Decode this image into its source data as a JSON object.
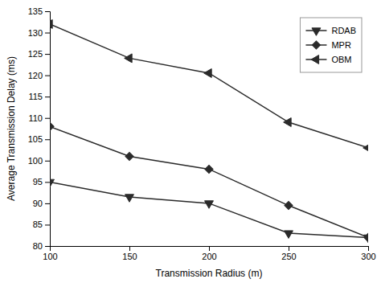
{
  "chart_data": {
    "type": "line",
    "xlabel": "Transmission Radius (m)",
    "ylabel": "Average Transmission Delay (ms)",
    "x": [
      100,
      150,
      200,
      250,
      300
    ],
    "series": [
      {
        "name": "RDAB",
        "color": "#2a2a2a",
        "marker": "triangle-down",
        "values": [
          95,
          91.5,
          90,
          83,
          82
        ]
      },
      {
        "name": "MPR",
        "color": "#2a2a2a",
        "marker": "diamond",
        "values": [
          108,
          101,
          98,
          89.5,
          82
        ]
      },
      {
        "name": "OBM",
        "color": "#2a2a2a",
        "marker": "triangle-left",
        "values": [
          132,
          124,
          120.5,
          109,
          103
        ]
      }
    ],
    "xlim": [
      100,
      300
    ],
    "ylim": [
      80,
      135
    ],
    "xticks": [
      100,
      150,
      200,
      250,
      300
    ],
    "yticks": [
      80,
      85,
      90,
      95,
      100,
      105,
      110,
      115,
      120,
      125,
      130,
      135
    ],
    "legend": "upper right",
    "grid": false
  }
}
